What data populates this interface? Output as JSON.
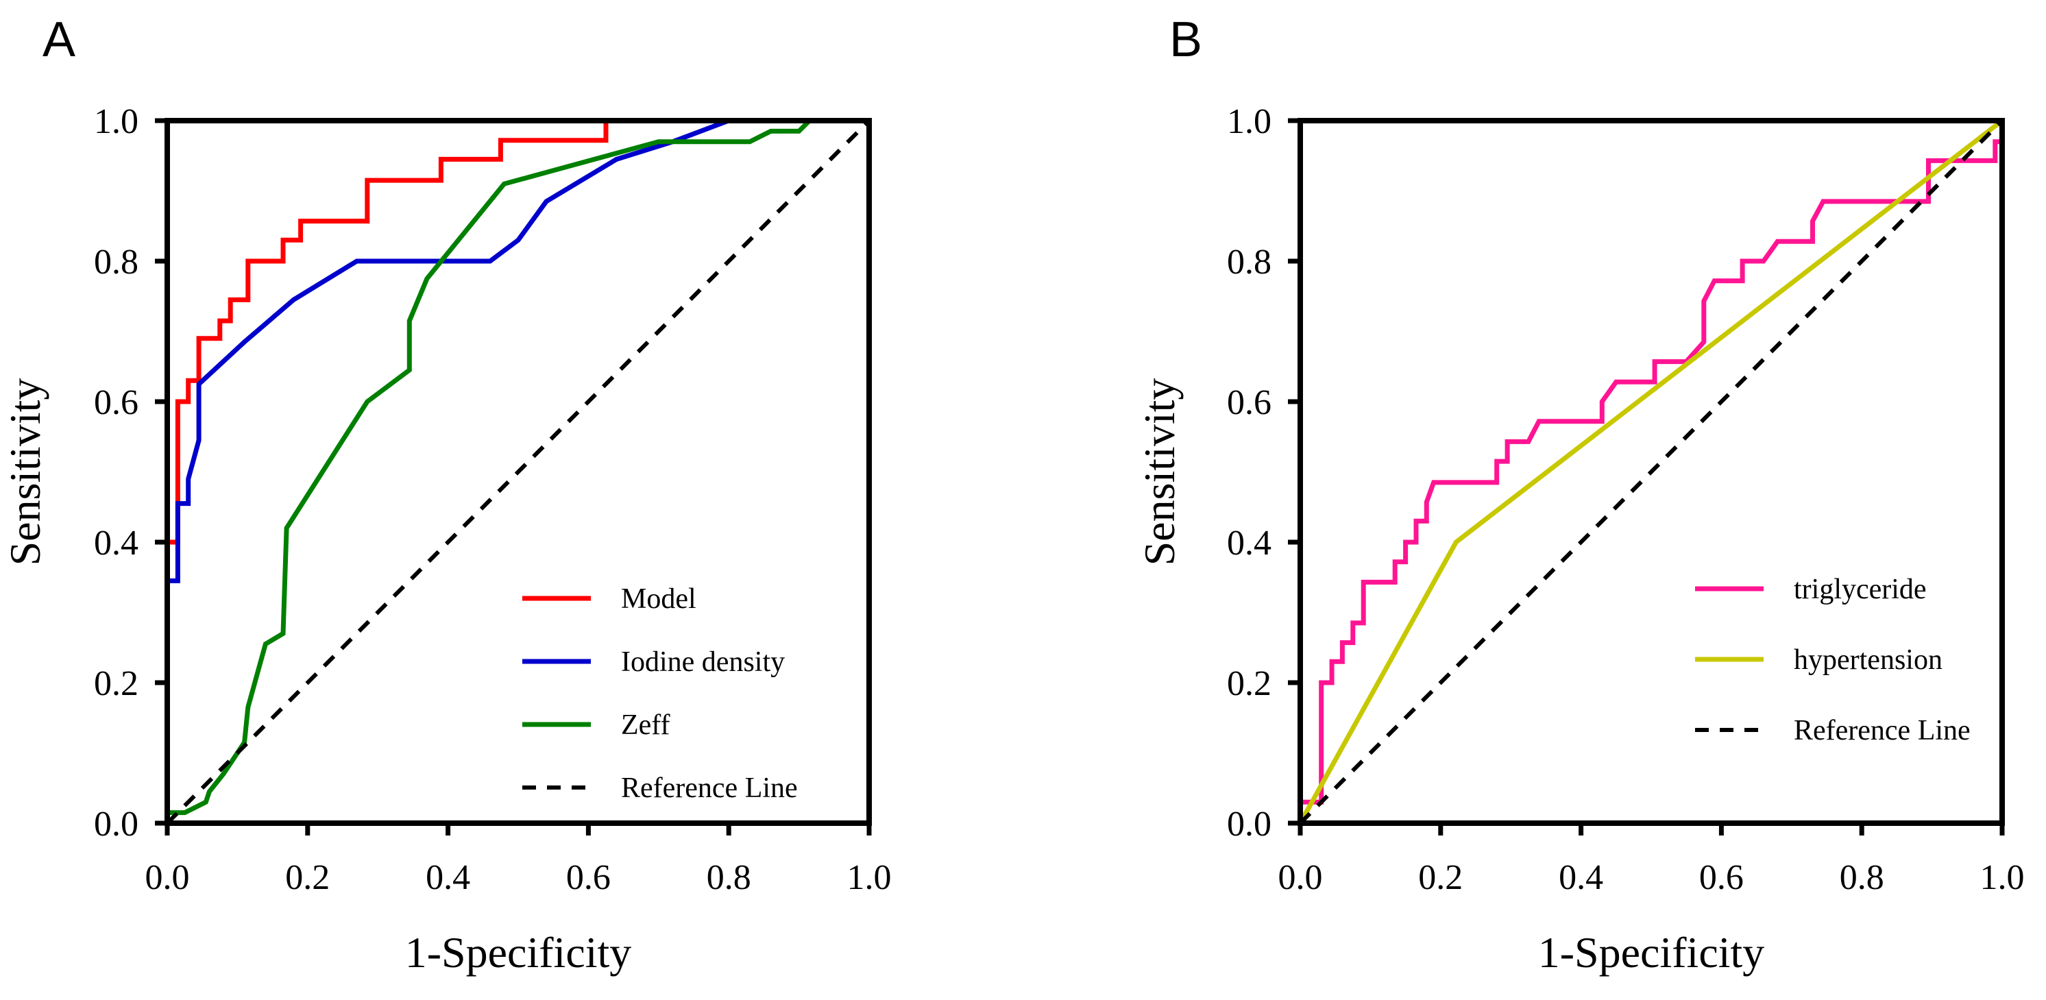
{
  "chart_data": [
    {
      "type": "line",
      "panel": "A",
      "xlabel": "1-Specificity",
      "ylabel": "Sensitivity",
      "xlim": [
        0,
        1
      ],
      "ylim": [
        0,
        1
      ],
      "xticks": [
        "0.0",
        "0.2",
        "0.4",
        "0.6",
        "0.8",
        "1.0"
      ],
      "yticks": [
        "0.0",
        "0.2",
        "0.4",
        "0.6",
        "0.8",
        "1.0"
      ],
      "legend_position": "bottom-right",
      "series": [
        {
          "name": "Model",
          "color": "#ff0000",
          "style": "solid",
          "points": [
            [
              0,
              0
            ],
            [
              0,
              0.4
            ],
            [
              0.015,
              0.4
            ],
            [
              0.015,
              0.6
            ],
            [
              0.03,
              0.6
            ],
            [
              0.03,
              0.63
            ],
            [
              0.045,
              0.63
            ],
            [
              0.045,
              0.69
            ],
            [
              0.075,
              0.69
            ],
            [
              0.075,
              0.715
            ],
            [
              0.09,
              0.715
            ],
            [
              0.09,
              0.745
            ],
            [
              0.115,
              0.745
            ],
            [
              0.115,
              0.8
            ],
            [
              0.165,
              0.8
            ],
            [
              0.165,
              0.83
            ],
            [
              0.19,
              0.83
            ],
            [
              0.19,
              0.857
            ],
            [
              0.285,
              0.857
            ],
            [
              0.285,
              0.915
            ],
            [
              0.39,
              0.915
            ],
            [
              0.39,
              0.945
            ],
            [
              0.475,
              0.945
            ],
            [
              0.475,
              0.972
            ],
            [
              0.625,
              0.972
            ],
            [
              0.625,
              1
            ],
            [
              1,
              1
            ]
          ]
        },
        {
          "name": "Iodine density",
          "color": "#0000cc",
          "style": "solid",
          "points": [
            [
              0,
              0.345
            ],
            [
              0.015,
              0.345
            ],
            [
              0.015,
              0.455
            ],
            [
              0.03,
              0.455
            ],
            [
              0.03,
              0.49
            ],
            [
              0.045,
              0.545
            ],
            [
              0.045,
              0.625
            ],
            [
              0.11,
              0.685
            ],
            [
              0.18,
              0.745
            ],
            [
              0.27,
              0.8
            ],
            [
              0.46,
              0.8
            ],
            [
              0.5,
              0.83
            ],
            [
              0.54,
              0.885
            ],
            [
              0.64,
              0.945
            ],
            [
              0.72,
              0.97
            ],
            [
              0.8,
              1
            ],
            [
              1,
              1
            ]
          ]
        },
        {
          "name": "Zeff",
          "color": "#008000",
          "style": "solid",
          "points": [
            [
              0,
              0
            ],
            [
              0,
              0.015
            ],
            [
              0.025,
              0.015
            ],
            [
              0.055,
              0.03
            ],
            [
              0.06,
              0.045
            ],
            [
              0.08,
              0.07
            ],
            [
              0.11,
              0.115
            ],
            [
              0.115,
              0.165
            ],
            [
              0.14,
              0.255
            ],
            [
              0.165,
              0.27
            ],
            [
              0.17,
              0.42
            ],
            [
              0.285,
              0.6
            ],
            [
              0.345,
              0.645
            ],
            [
              0.345,
              0.715
            ],
            [
              0.37,
              0.775
            ],
            [
              0.48,
              0.91
            ],
            [
              0.7,
              0.97
            ],
            [
              0.83,
              0.97
            ],
            [
              0.86,
              0.985
            ],
            [
              0.9,
              0.985
            ],
            [
              0.915,
              1
            ],
            [
              1,
              1
            ]
          ]
        },
        {
          "name": "Reference Line",
          "color": "#000000",
          "style": "dashed",
          "points": [
            [
              0,
              0
            ],
            [
              1,
              1
            ]
          ]
        }
      ]
    },
    {
      "type": "line",
      "panel": "B",
      "xlabel": "1-Specificity",
      "ylabel": "Sensitivity",
      "xlim": [
        0,
        1
      ],
      "ylim": [
        0,
        1
      ],
      "xticks": [
        "0.0",
        "0.2",
        "0.4",
        "0.6",
        "0.8",
        "1.0"
      ],
      "yticks": [
        "0.0",
        "0.2",
        "0.4",
        "0.6",
        "0.8",
        "1.0"
      ],
      "legend_position": "bottom-right",
      "series": [
        {
          "name": "triglyceride",
          "color": "#ff1493",
          "style": "solid",
          "points": [
            [
              0,
              0
            ],
            [
              0,
              0.03
            ],
            [
              0.03,
              0.03
            ],
            [
              0.03,
              0.2
            ],
            [
              0.045,
              0.2
            ],
            [
              0.045,
              0.23
            ],
            [
              0.06,
              0.23
            ],
            [
              0.06,
              0.257
            ],
            [
              0.075,
              0.257
            ],
            [
              0.075,
              0.285
            ],
            [
              0.09,
              0.285
            ],
            [
              0.09,
              0.343
            ],
            [
              0.135,
              0.343
            ],
            [
              0.135,
              0.372
            ],
            [
              0.15,
              0.372
            ],
            [
              0.15,
              0.4
            ],
            [
              0.165,
              0.4
            ],
            [
              0.165,
              0.43
            ],
            [
              0.18,
              0.43
            ],
            [
              0.18,
              0.457
            ],
            [
              0.19,
              0.485
            ],
            [
              0.28,
              0.485
            ],
            [
              0.28,
              0.515
            ],
            [
              0.295,
              0.515
            ],
            [
              0.295,
              0.543
            ],
            [
              0.325,
              0.543
            ],
            [
              0.34,
              0.572
            ],
            [
              0.43,
              0.572
            ],
            [
              0.43,
              0.6
            ],
            [
              0.45,
              0.628
            ],
            [
              0.505,
              0.628
            ],
            [
              0.505,
              0.657
            ],
            [
              0.55,
              0.657
            ],
            [
              0.575,
              0.685
            ],
            [
              0.575,
              0.743
            ],
            [
              0.59,
              0.772
            ],
            [
              0.63,
              0.772
            ],
            [
              0.63,
              0.8
            ],
            [
              0.66,
              0.8
            ],
            [
              0.68,
              0.828
            ],
            [
              0.73,
              0.828
            ],
            [
              0.73,
              0.857
            ],
            [
              0.745,
              0.885
            ],
            [
              0.895,
              0.885
            ],
            [
              0.895,
              0.943
            ],
            [
              0.99,
              0.943
            ],
            [
              0.99,
              0.97
            ],
            [
              1,
              0.97
            ],
            [
              1,
              1
            ]
          ]
        },
        {
          "name": "hypertension",
          "color": "#c8c800",
          "style": "solid",
          "points": [
            [
              0,
              0
            ],
            [
              0.222,
              0.4
            ],
            [
              1,
              1
            ]
          ]
        },
        {
          "name": "Reference Line",
          "color": "#000000",
          "style": "dashed",
          "points": [
            [
              0,
              0
            ],
            [
              1,
              1
            ]
          ]
        }
      ]
    }
  ]
}
